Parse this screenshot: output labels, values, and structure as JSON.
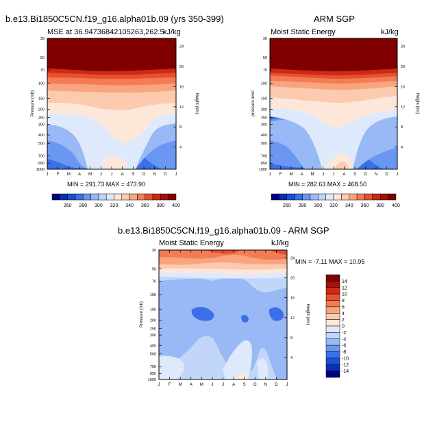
{
  "titles": {
    "left_main": "b.e13.Bi1850C5CN.f19_g16.alpha01b.09 (yrs 350-399)",
    "right_main": "ARM SGP",
    "bottom_main": "b.e13.Bi1850C5CN.f19_g16.alpha01b.09 - ARM SGP"
  },
  "panels": {
    "left": {
      "subtitle_left": "MSE at 36.94736842105263,262.5",
      "subtitle_right": "kJ/kg",
      "minmax": "MIN = 291.73  MAX = 473.90",
      "ylabel": "Pressure (mb)",
      "y2label": "Height (km)"
    },
    "right": {
      "subtitle_left": "Moist Static Energy",
      "subtitle_right": "kJ/kg",
      "minmax": "MIN = 282.63  MAX = 468.50",
      "ylabel": "pressure level",
      "y2label": "Height (km)"
    },
    "bottom": {
      "subtitle_left": "Moist Static Energy",
      "subtitle_right": "kJ/kg",
      "minmax": "MIN =  -7.11  MAX =  10.95",
      "ylabel": "Pressure (mb)",
      "y2label": "Height (km)"
    }
  },
  "chart_data": [
    {
      "type": "heatmap",
      "id": "model",
      "x_ticks": [
        "J",
        "F",
        "M",
        "A",
        "M",
        "J",
        "J",
        "A",
        "S",
        "O",
        "N",
        "D",
        "J"
      ],
      "y_ticks": [
        "30",
        "50",
        "70",
        "100",
        "150",
        "200",
        "250",
        "300",
        "400",
        "500",
        "700",
        "850",
        "1000"
      ],
      "y2_ticks": [
        "24",
        "20",
        "16",
        "12",
        "8",
        "4"
      ],
      "colorbar_labels": [
        "260",
        "280",
        "300",
        "320",
        "340",
        "360",
        "380",
        "400"
      ],
      "colorbar_colors": [
        "#000080",
        "#0a2fb5",
        "#1b4fd6",
        "#3a6fe8",
        "#6a97f2",
        "#98b8f6",
        "#c2d6fa",
        "#deeafc",
        "#fde7d8",
        "#fbcaaf",
        "#f8a57f",
        "#f47c55",
        "#e8502d",
        "#cc2a16",
        "#a8100a",
        "#800000"
      ],
      "contour_levels": [
        260,
        270,
        280,
        290,
        300,
        310,
        320,
        330,
        340,
        350,
        360,
        370,
        380,
        390,
        400
      ],
      "layers": [
        {
          "level": 300,
          "color": "#98b8f6"
        },
        {
          "level": 320,
          "color": "#c2d6fa"
        },
        {
          "level": 330,
          "color": "#deeafc"
        },
        {
          "level": 340,
          "color": "#fde7d8"
        },
        {
          "level": 350,
          "color": "#fbcaaf"
        },
        {
          "level": 360,
          "color": "#f8a57f"
        },
        {
          "level": 370,
          "color": "#f47c55"
        },
        {
          "level": 380,
          "color": "#e8502d"
        },
        {
          "level": 390,
          "color": "#cc2a16"
        },
        {
          "level": 400,
          "color": "#800000"
        }
      ]
    },
    {
      "type": "heatmap",
      "id": "obs",
      "x_ticks": [
        "J",
        "F",
        "M",
        "A",
        "M",
        "J",
        "J",
        "A",
        "S",
        "O",
        "N",
        "D",
        "J"
      ],
      "y_ticks": [
        "30",
        "50",
        "70",
        "100",
        "150",
        "200",
        "250",
        "300",
        "400",
        "500",
        "700",
        "850",
        "1000"
      ],
      "y2_ticks": [
        "24",
        "20",
        "16",
        "12",
        "8",
        "4"
      ],
      "colorbar_labels": [
        "260",
        "280",
        "300",
        "320",
        "340",
        "360",
        "380",
        "400"
      ],
      "colorbar_colors": [
        "#000080",
        "#0a2fb5",
        "#1b4fd6",
        "#3a6fe8",
        "#6a97f2",
        "#98b8f6",
        "#c2d6fa",
        "#deeafc",
        "#fde7d8",
        "#fbcaaf",
        "#f8a57f",
        "#f47c55",
        "#e8502d",
        "#cc2a16",
        "#a8100a",
        "#800000"
      ],
      "contour_levels": [
        260,
        270,
        280,
        290,
        300,
        310,
        320,
        330,
        340,
        350,
        360,
        370,
        380,
        390,
        400
      ]
    },
    {
      "type": "heatmap",
      "id": "difference",
      "x_ticks": [
        "J",
        "F",
        "M",
        "A",
        "M",
        "J",
        "J",
        "A",
        "S",
        "O",
        "N",
        "D",
        "J"
      ],
      "y_ticks": [
        "30",
        "50",
        "70",
        "100",
        "150",
        "200",
        "250",
        "300",
        "400",
        "500",
        "700",
        "850",
        "1000"
      ],
      "y2_ticks": [
        "24",
        "20",
        "16",
        "12",
        "8",
        "4"
      ],
      "colorbar_labels": [
        "14",
        "12",
        "10",
        "8",
        "6",
        "4",
        "2",
        "0",
        "-2",
        "-4",
        "-6",
        "-8",
        "-10",
        "-12",
        "-14"
      ],
      "colorbar_colors": [
        "#800000",
        "#a8100a",
        "#cc2a16",
        "#e8502d",
        "#f47c55",
        "#f8a57f",
        "#fbcaaf",
        "#fde7d8",
        "#deeafc",
        "#c2d6fa",
        "#98b8f6",
        "#6a97f2",
        "#3a6fe8",
        "#1b4fd6",
        "#0a2fb5",
        "#000080"
      ],
      "contour_levels": [
        -14,
        -12,
        -10,
        -8,
        -6,
        -4,
        -2,
        0,
        2,
        4,
        6,
        8,
        10,
        12,
        14
      ]
    }
  ]
}
